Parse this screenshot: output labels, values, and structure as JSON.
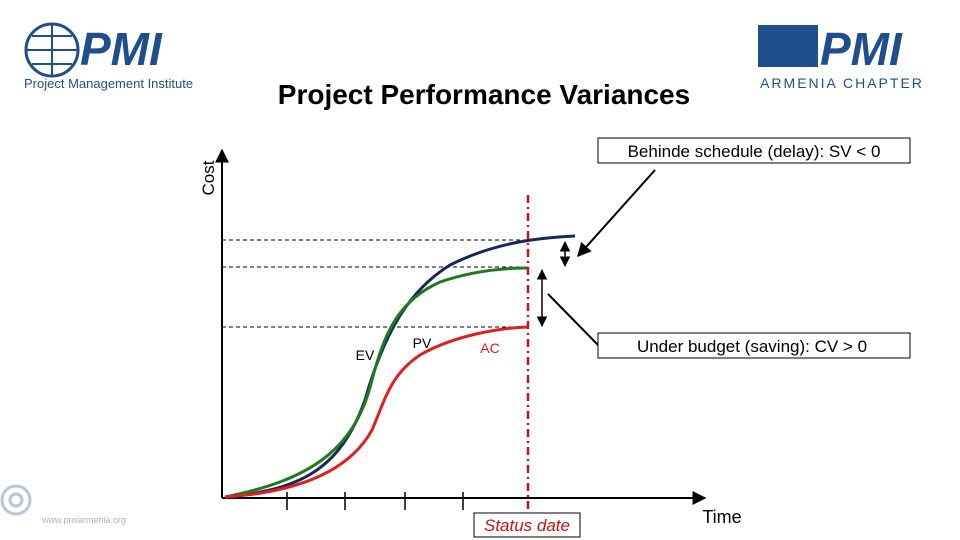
{
  "header": {
    "title": "Project Performance Variances",
    "left_logo": {
      "mark": "PMI",
      "caption": "Project Management Institute"
    },
    "right_logo": {
      "mark": "PMI",
      "caption": "ARMENIA CHAPTER"
    }
  },
  "diagram": {
    "y_axis_label": "Cost",
    "x_axis_label": "Time",
    "curves": {
      "ev": "EV",
      "pv": "PV",
      "ac": "AC"
    },
    "status_date": "Status date",
    "callouts": {
      "schedule": "Behinde schedule (delay): SV < 0",
      "budget": "Under budget (saving): CV > 0"
    }
  },
  "footer": {
    "url": "www.pmiarmenia.org"
  }
}
